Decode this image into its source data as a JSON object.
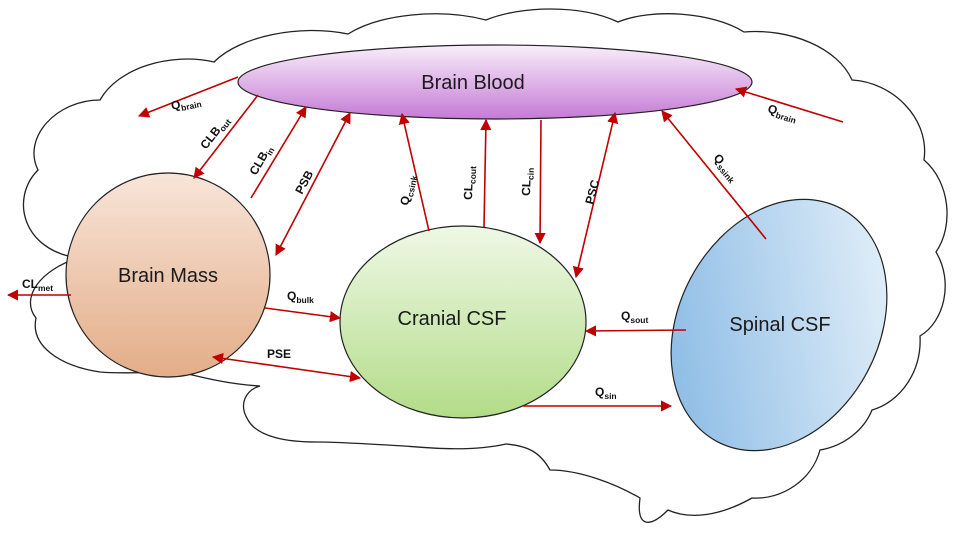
{
  "nodes": {
    "brain_blood": "Brain Blood",
    "brain_mass": "Brain Mass",
    "cranial_csf": "Cranial CSF",
    "spinal_csf": "Spinal CSF"
  },
  "edges": {
    "q_brain_out": {
      "main": "Q",
      "sub": "brain"
    },
    "clb_out": {
      "main": "CLB",
      "sub": "out"
    },
    "clb_in": {
      "main": "CLB",
      "sub": "in"
    },
    "psb": {
      "main": "PSB",
      "sub": ""
    },
    "q_csink": {
      "main": "Q",
      "sub": "csink"
    },
    "cl_cout": {
      "main": "CL",
      "sub": "cout"
    },
    "cl_cin": {
      "main": "CL",
      "sub": "cin"
    },
    "psc": {
      "main": "PSC",
      "sub": ""
    },
    "q_ssink": {
      "main": "Q",
      "sub": "ssink"
    },
    "q_brain_in": {
      "main": "Q",
      "sub": "brain"
    },
    "cl_met": {
      "main": "CL",
      "sub": "met"
    },
    "q_bulk": {
      "main": "Q",
      "sub": "bulk"
    },
    "pse": {
      "main": "PSE",
      "sub": ""
    },
    "q_sout": {
      "main": "Q",
      "sub": "sout"
    },
    "q_sin": {
      "main": "Q",
      "sub": "sin"
    }
  },
  "colors": {
    "arrow": "#c00000",
    "brain_blood": "#c77fd6",
    "brain_mass": "#e6b08e",
    "cranial_csf": "#b6df8c",
    "spinal_csf": "#8fbde6"
  }
}
